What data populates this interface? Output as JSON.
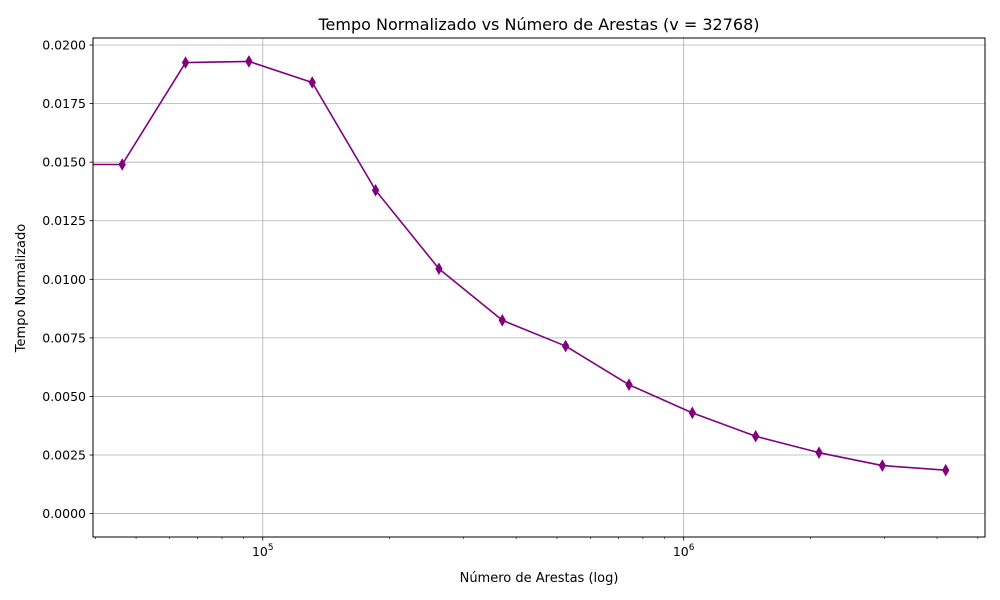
{
  "chart_data": {
    "type": "line",
    "title": "Tempo Normalizado vs Número de Arestas (v = 32768)",
    "xlabel": "Número de Arestas (log)",
    "ylabel": "Tempo Normalizado",
    "x_scale": "log",
    "xlim": [
      39500,
      5200000
    ],
    "ylim": [
      -0.001,
      0.0203
    ],
    "x_ticks": [
      {
        "value": 100000,
        "base": "10",
        "exp": "5"
      },
      {
        "value": 1000000,
        "base": "10",
        "exp": "6"
      }
    ],
    "y_ticks": [
      0.0,
      0.0025,
      0.005,
      0.0075,
      0.01,
      0.0125,
      0.015,
      0.0175,
      0.02
    ],
    "y_tick_labels": [
      "0.0000",
      "0.0025",
      "0.0050",
      "0.0075",
      "0.0100",
      "0.0125",
      "0.0150",
      "0.0175",
      "0.0200"
    ],
    "grid": true,
    "series": [
      {
        "color": "#800080",
        "marker": "thin-diamond",
        "x": [
          32768,
          46341,
          65536,
          92682,
          131072,
          185364,
          262144,
          370728,
          524288,
          741455,
          1048576,
          1482910,
          2097152,
          2965821,
          4194304
        ],
        "y": [
          0.0149,
          0.0149,
          0.01925,
          0.0193,
          0.0184,
          0.0138,
          0.01045,
          0.00825,
          0.00715,
          0.0055,
          0.0043,
          0.0033,
          0.0026,
          0.00205,
          0.00185
        ]
      }
    ]
  }
}
